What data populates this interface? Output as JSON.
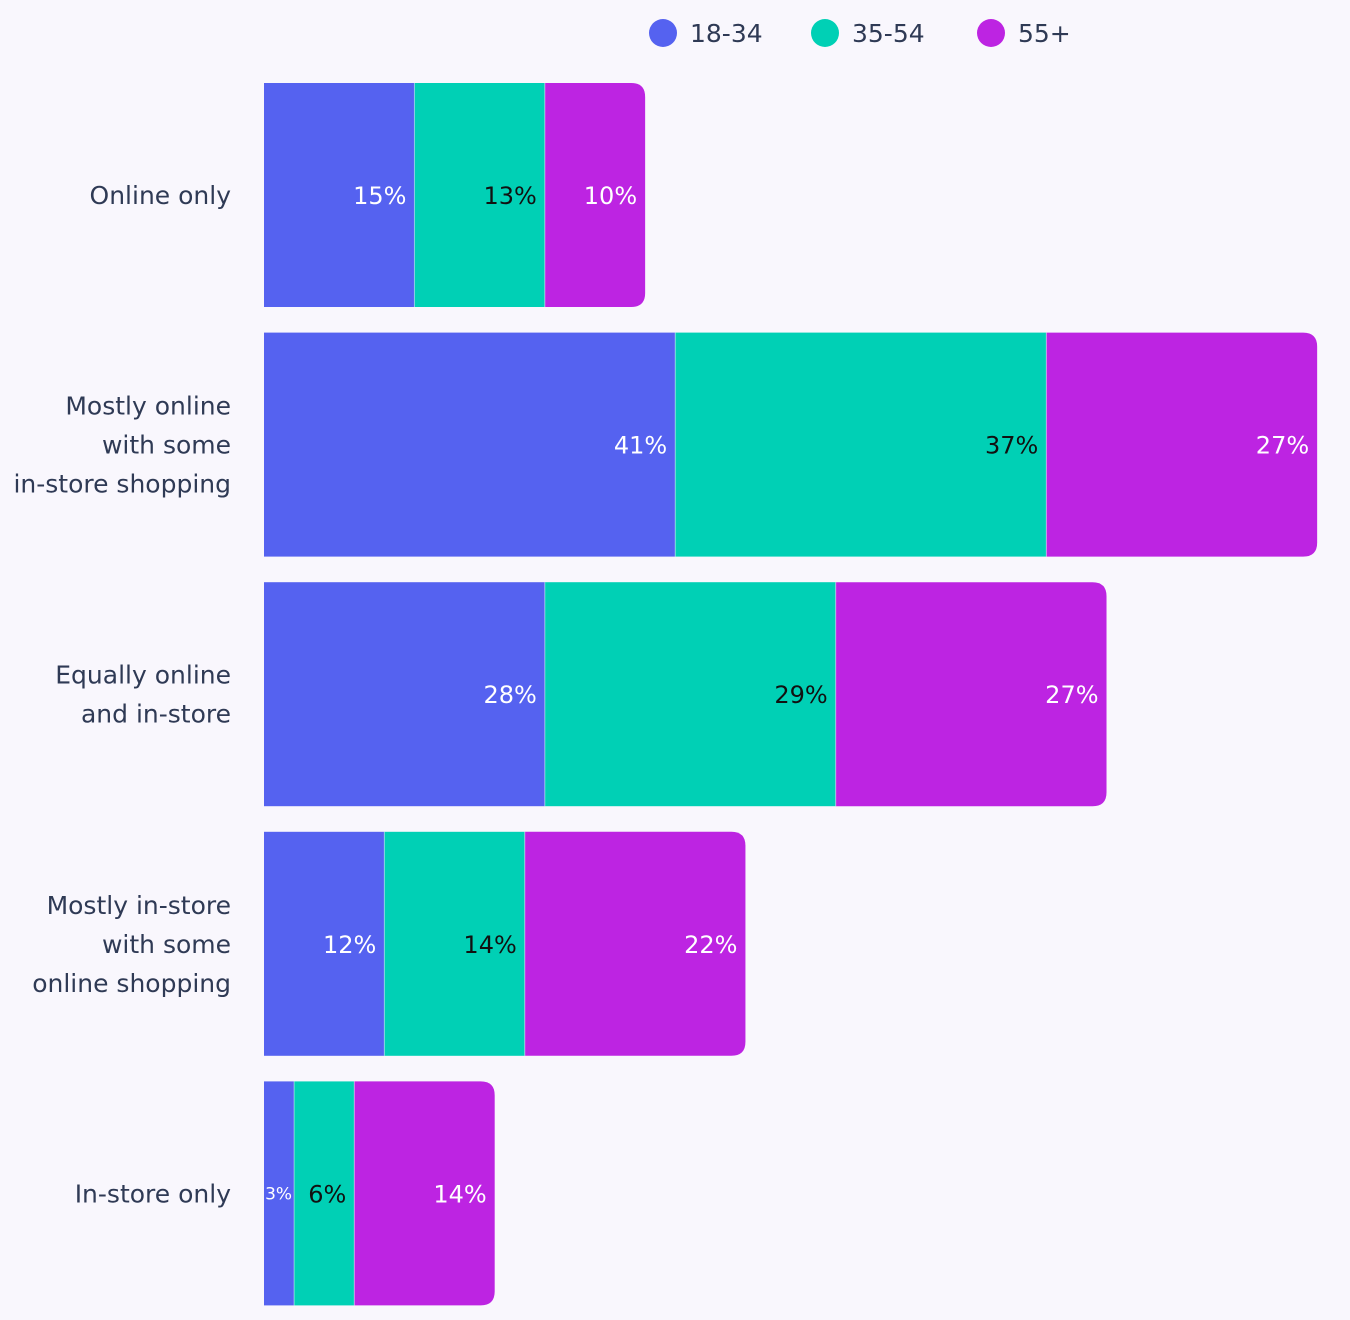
{
  "chart_data": {
    "type": "bar",
    "orientation": "horizontal",
    "stacked": true,
    "title": "",
    "xlabel": "",
    "ylabel": "",
    "xlim": [
      0,
      105
    ],
    "grid": false,
    "legend_position": "top-center",
    "categories": [
      [
        "Online only"
      ],
      [
        "Mostly online",
        "with some",
        "in-store shopping"
      ],
      [
        "Equally online",
        "and in-store"
      ],
      [
        "Mostly in-store",
        "with some",
        "online shopping"
      ],
      [
        "In-store only"
      ]
    ],
    "series": [
      {
        "name": "18-34",
        "color": "#5562f0",
        "label_color": "#ffffff",
        "values": [
          15,
          41,
          28,
          12,
          3
        ],
        "labels": [
          "15%",
          "41%",
          "28%",
          "12%",
          "3%"
        ]
      },
      {
        "name": "35-54",
        "color": "#00d0b5",
        "label_color": "#111111",
        "values": [
          13,
          37,
          29,
          14,
          6
        ],
        "labels": [
          "13%",
          "37%",
          "29%",
          "14%",
          "6%"
        ]
      },
      {
        "name": "55+",
        "color": "#bd24e2",
        "label_color": "#ffffff",
        "values": [
          10,
          27,
          27,
          22,
          14
        ],
        "labels": [
          "10%",
          "27%",
          "27%",
          "22%",
          "14%"
        ]
      }
    ]
  }
}
